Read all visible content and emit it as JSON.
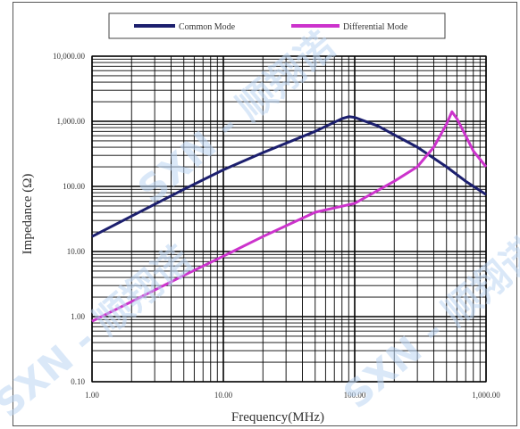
{
  "chart_data": {
    "type": "line",
    "x_scale": "log",
    "y_scale": "log",
    "xlim": [
      1,
      1000
    ],
    "ylim": [
      0.1,
      10000
    ],
    "grid": true,
    "legend_position": "top",
    "xlabel": "Frequency(MHz)",
    "ylabel": "Impedance (Ω)",
    "x_ticks": [
      "1.00",
      "10.00",
      "100.00",
      "1,000.00"
    ],
    "y_ticks": [
      "0.10",
      "1.00",
      "10.00",
      "100.00",
      "1,000.00",
      "10,000.00"
    ],
    "series": [
      {
        "name": "Common Mode",
        "color": "#1c1f6e",
        "x": [
          1,
          2,
          5,
          10,
          20,
          50,
          80,
          90,
          100,
          150,
          200,
          300,
          500,
          700,
          1000
        ],
        "y": [
          17,
          35,
          90,
          180,
          330,
          700,
          1100,
          1180,
          1150,
          850,
          620,
          400,
          200,
          120,
          75
        ]
      },
      {
        "name": "Differential Mode",
        "color": "#cc33cc",
        "x": [
          1,
          2,
          5,
          10,
          20,
          50,
          100,
          200,
          300,
          400,
          500,
          550,
          600,
          700,
          800,
          1000
        ],
        "y": [
          0.85,
          1.7,
          4.3,
          8.5,
          17,
          40,
          55,
          120,
          200,
          400,
          900,
          1400,
          1100,
          600,
          350,
          200
        ]
      }
    ]
  },
  "watermark": "SXN - 顺翔诺"
}
